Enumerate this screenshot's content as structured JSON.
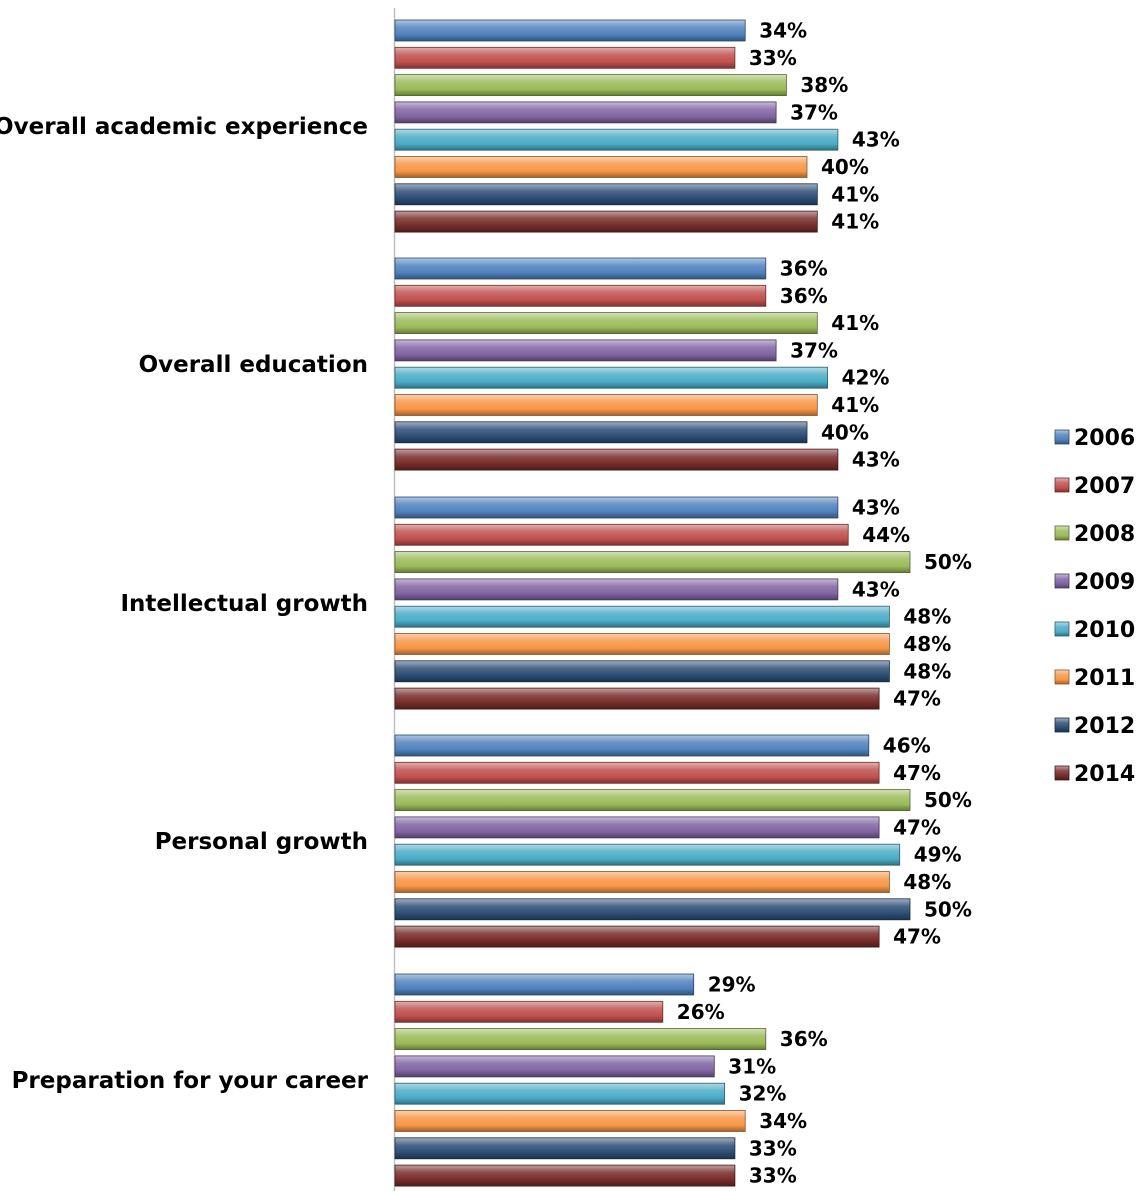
{
  "chart_data": {
    "type": "bar",
    "orientation": "horizontal",
    "categories": [
      "Overall academic experience",
      "Overall education",
      "Intellectual growth",
      "Personal growth",
      "Preparation for your career"
    ],
    "value_suffix": "%",
    "xlim": [
      0,
      60
    ],
    "grid": false,
    "legend_position": "right",
    "series": [
      {
        "name": "2006",
        "color": "#4F81BD",
        "values": [
          34,
          36,
          43,
          46,
          29
        ]
      },
      {
        "name": "2007",
        "color": "#C0504D",
        "values": [
          33,
          36,
          44,
          47,
          26
        ]
      },
      {
        "name": "2008",
        "color": "#9BBB59",
        "values": [
          38,
          41,
          50,
          50,
          36
        ]
      },
      {
        "name": "2009",
        "color": "#8064A2",
        "values": [
          37,
          37,
          43,
          47,
          31
        ]
      },
      {
        "name": "2010",
        "color": "#4BACC6",
        "values": [
          43,
          42,
          48,
          49,
          32
        ]
      },
      {
        "name": "2011",
        "color": "#F79646",
        "values": [
          40,
          41,
          48,
          48,
          34
        ]
      },
      {
        "name": "2012",
        "color": "#2C4D75",
        "values": [
          41,
          40,
          48,
          50,
          33
        ]
      },
      {
        "name": "2014",
        "color": "#772C2A",
        "values": [
          41,
          43,
          47,
          47,
          33
        ]
      }
    ]
  }
}
